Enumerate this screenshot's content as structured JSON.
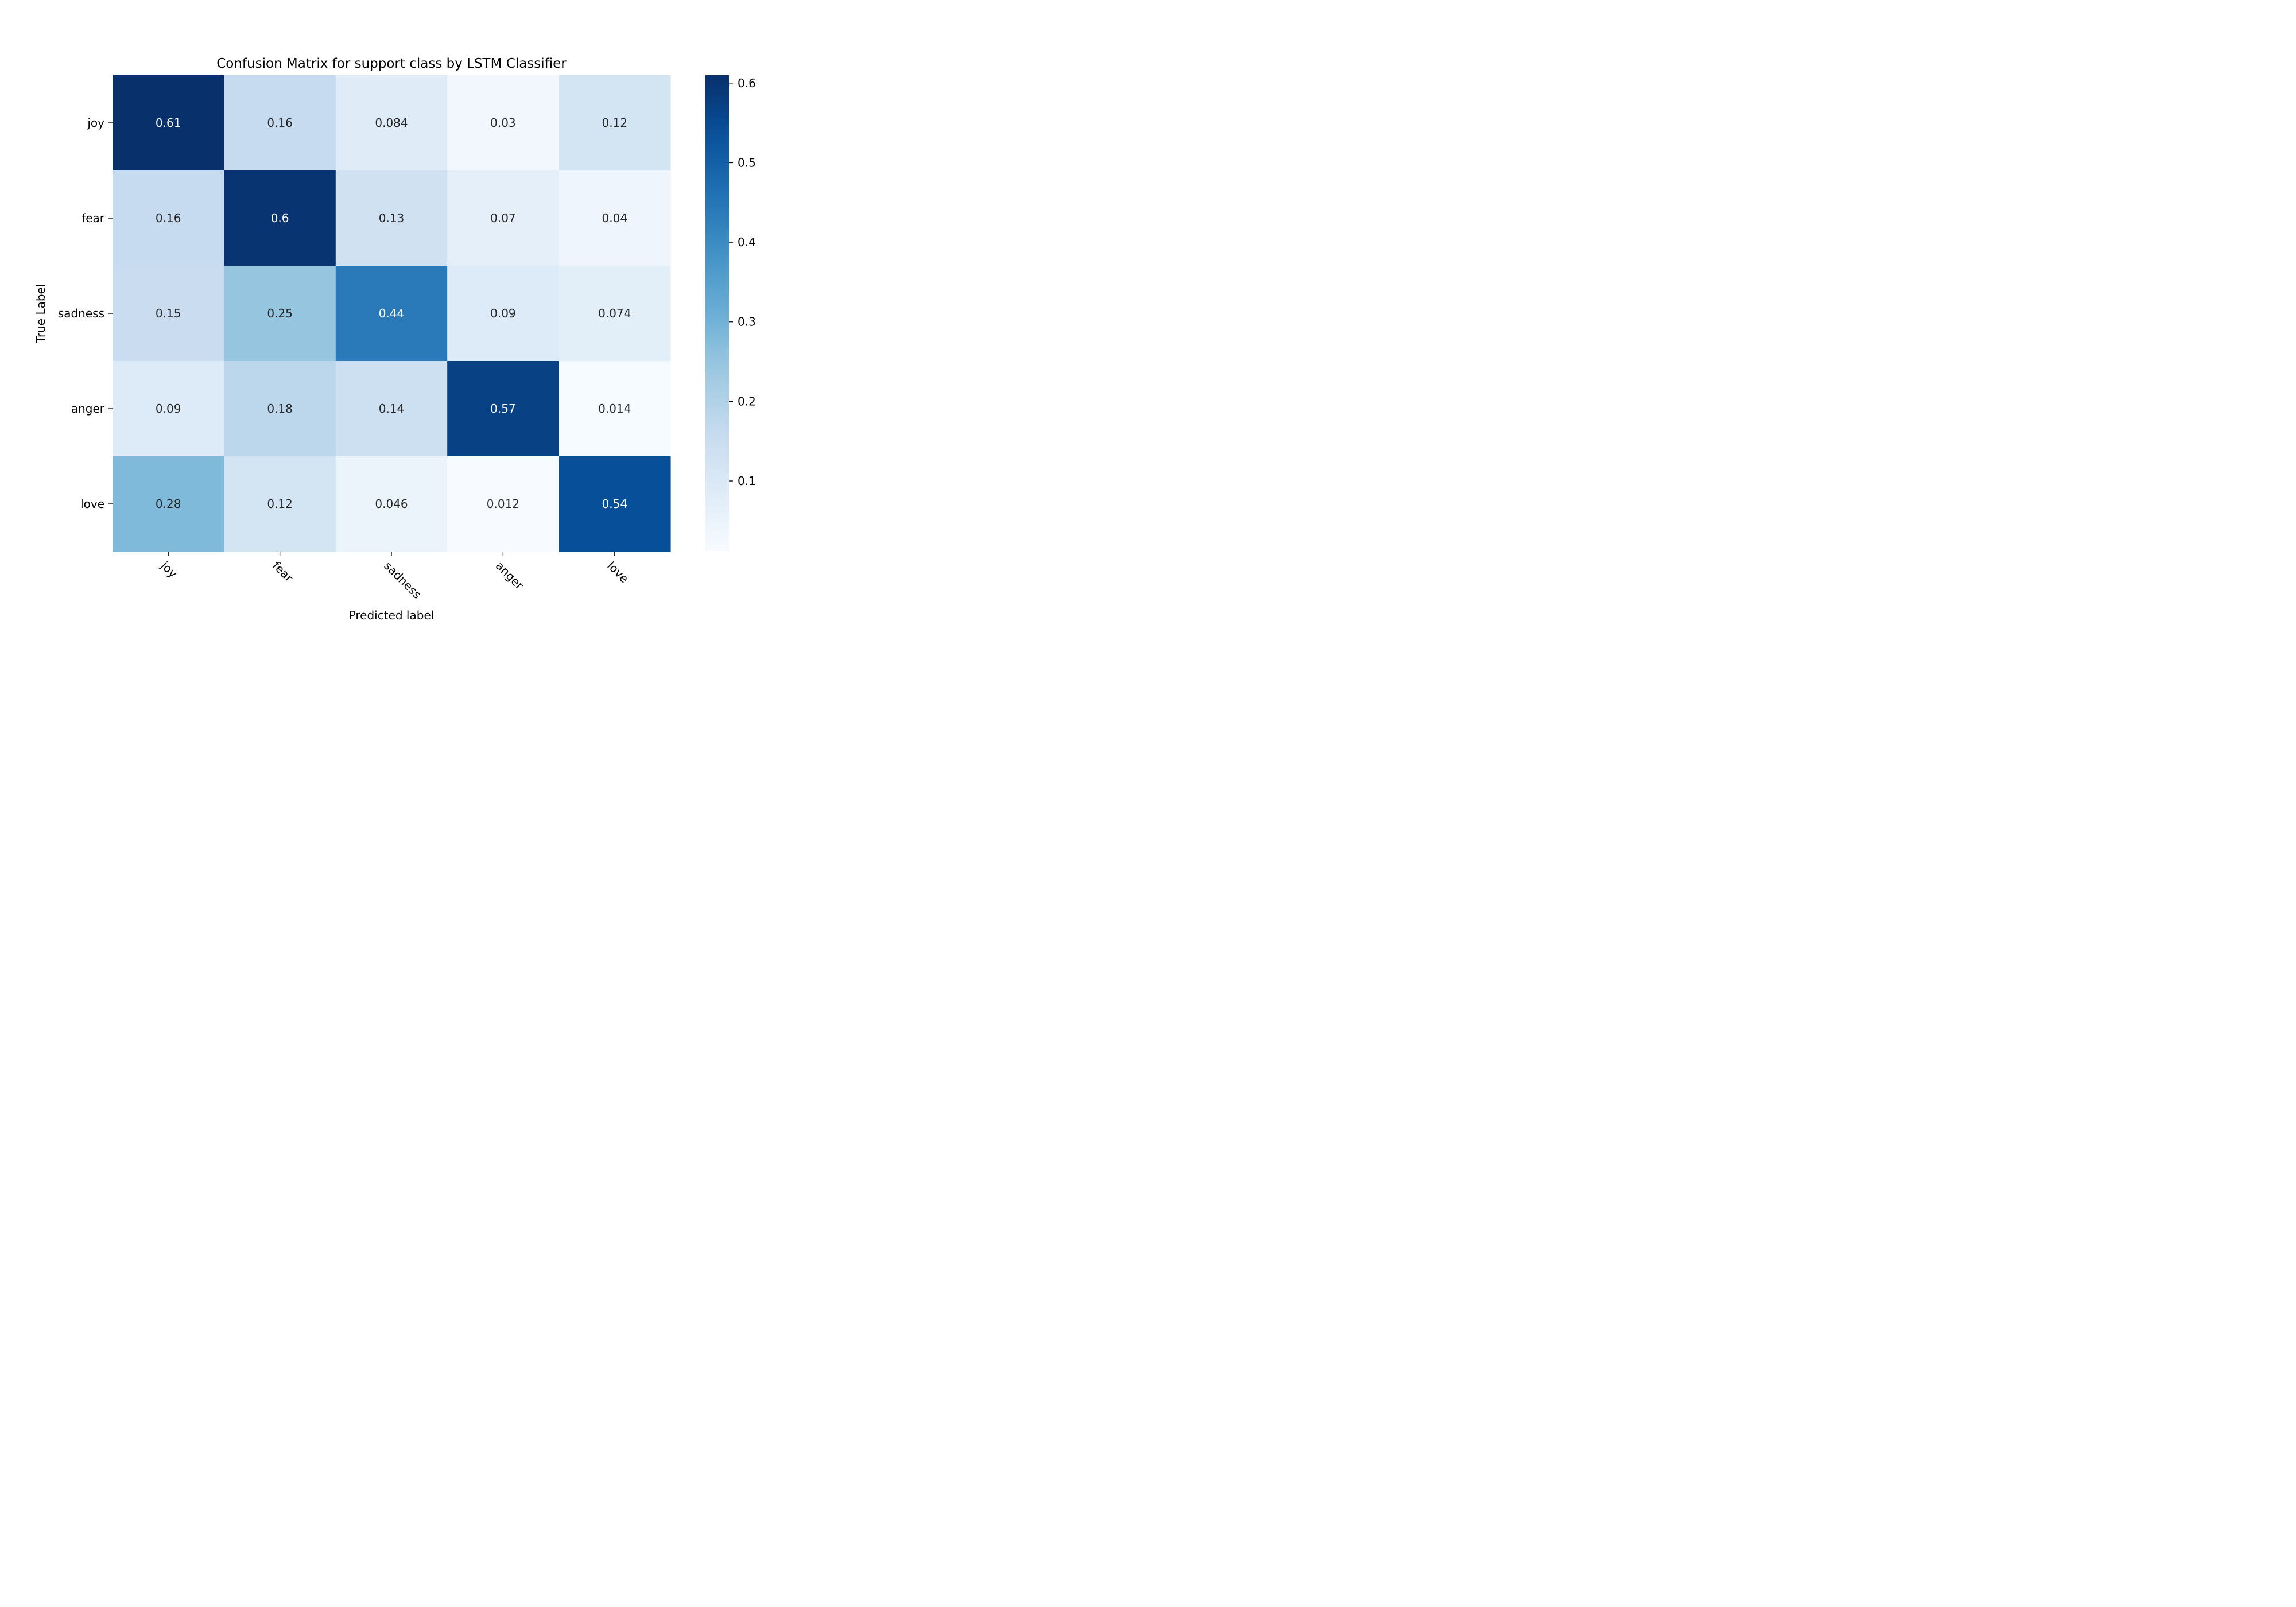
{
  "chart_data": {
    "type": "heatmap",
    "title": "Confusion Matrix for support class by LSTM Classifier",
    "xlabel": "Predicted label",
    "ylabel": "True Label",
    "x_categories": [
      "joy",
      "fear",
      "sadness",
      "anger",
      "love"
    ],
    "y_categories": [
      "joy",
      "fear",
      "sadness",
      "anger",
      "love"
    ],
    "values": [
      [
        0.61,
        0.16,
        0.084,
        0.03,
        0.12
      ],
      [
        0.16,
        0.6,
        0.13,
        0.07,
        0.04
      ],
      [
        0.15,
        0.25,
        0.44,
        0.09,
        0.074
      ],
      [
        0.09,
        0.18,
        0.14,
        0.57,
        0.014
      ],
      [
        0.28,
        0.12,
        0.046,
        0.012,
        0.54
      ]
    ],
    "value_labels": [
      [
        "0.61",
        "0.16",
        "0.084",
        "0.03",
        "0.12"
      ],
      [
        "0.16",
        "0.6",
        "0.13",
        "0.07",
        "0.04"
      ],
      [
        "0.15",
        "0.25",
        "0.44",
        "0.09",
        "0.074"
      ],
      [
        "0.09",
        "0.18",
        "0.14",
        "0.57",
        "0.014"
      ],
      [
        "0.28",
        "0.12",
        "0.046",
        "0.012",
        "0.54"
      ]
    ],
    "colormap": "Blues",
    "colorbar": {
      "range": [
        0.012,
        0.61
      ],
      "ticks": [
        0.1,
        0.2,
        0.3,
        0.4,
        0.5,
        0.6
      ],
      "tick_labels": [
        "0.1",
        "0.2",
        "0.3",
        "0.4",
        "0.5",
        "0.6"
      ]
    },
    "colors": {
      "dark_text": "#262626",
      "light_text": "#ffffff"
    }
  }
}
